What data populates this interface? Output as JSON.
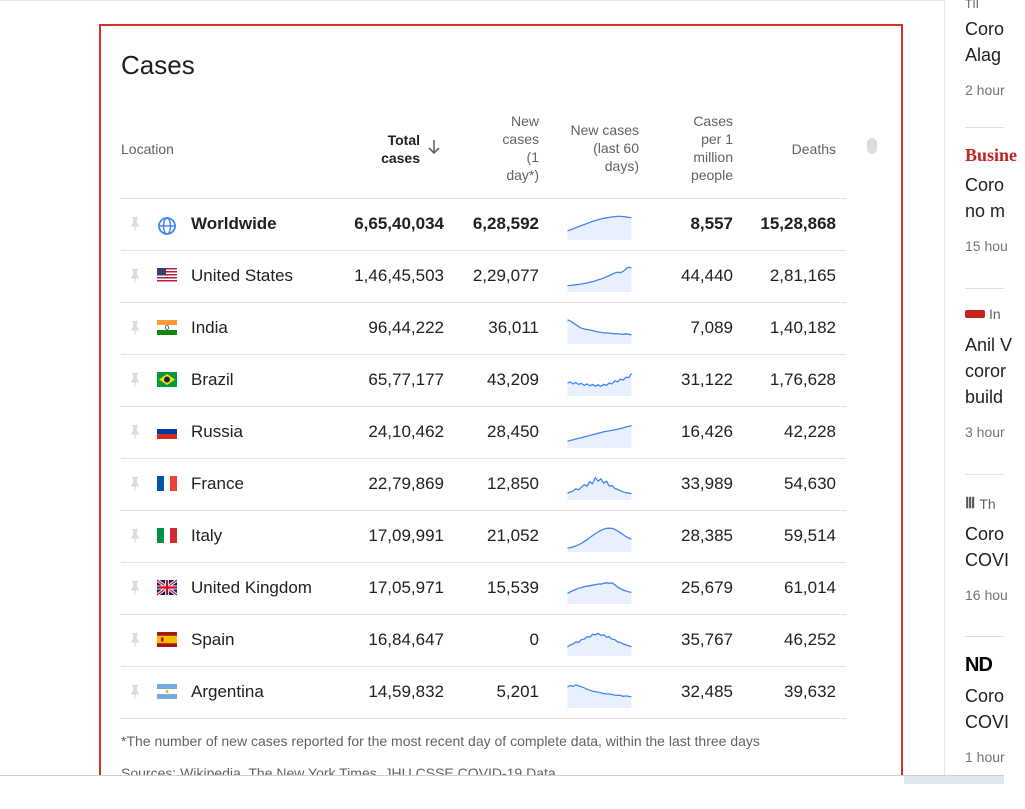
{
  "panel": {
    "title": "Cases",
    "headers": {
      "location": "Location",
      "total_line1": "Total",
      "total_line2": "cases",
      "new_line1": "New",
      "new_line2": "cases",
      "new_line3": "(1",
      "new_line4": "day*)",
      "trend_line1": "New cases",
      "trend_line2": "(last 60",
      "trend_line3": "days)",
      "permil_line1": "Cases",
      "permil_line2": "per 1",
      "permil_line3": "million",
      "permil_line4": "people",
      "deaths": "Deaths"
    },
    "rows": [
      {
        "location": "Worldwide",
        "flag": "globe-icon",
        "total": "6,65,40,034",
        "new": "6,28,592",
        "per_million": "8,557",
        "deaths": "15,28,868",
        "trend": [
          0.3,
          0.34,
          0.38,
          0.43,
          0.47,
          0.52,
          0.56,
          0.61,
          0.65,
          0.69,
          0.73,
          0.76,
          0.79,
          0.82,
          0.84,
          0.86,
          0.88,
          0.89,
          0.9,
          0.9,
          0.89,
          0.88,
          0.86,
          0.85
        ]
      },
      {
        "location": "United States",
        "flag": "us-flag-icon",
        "total": "1,46,45,503",
        "new": "2,29,077",
        "per_million": "44,440",
        "deaths": "2,81,165",
        "trend": [
          0.18,
          0.19,
          0.2,
          0.22,
          0.23,
          0.25,
          0.27,
          0.29,
          0.32,
          0.35,
          0.38,
          0.42,
          0.46,
          0.5,
          0.55,
          0.6,
          0.66,
          0.71,
          0.74,
          0.72,
          0.78,
          0.88,
          0.95,
          0.92
        ]
      },
      {
        "location": "India",
        "flag": "india-flag-icon",
        "total": "96,44,222",
        "new": "36,011",
        "per_million": "7,089",
        "deaths": "1,40,182",
        "trend": [
          0.92,
          0.88,
          0.8,
          0.72,
          0.64,
          0.58,
          0.54,
          0.52,
          0.5,
          0.48,
          0.44,
          0.42,
          0.4,
          0.38,
          0.38,
          0.37,
          0.36,
          0.34,
          0.35,
          0.33,
          0.32,
          0.34,
          0.32,
          0.3
        ]
      },
      {
        "location": "Brazil",
        "flag": "brazil-flag-icon",
        "total": "65,77,177",
        "new": "43,209",
        "per_million": "31,122",
        "deaths": "1,76,628",
        "trend": [
          0.45,
          0.5,
          0.42,
          0.48,
          0.4,
          0.44,
          0.36,
          0.42,
          0.34,
          0.4,
          0.33,
          0.38,
          0.32,
          0.4,
          0.36,
          0.46,
          0.42,
          0.55,
          0.5,
          0.62,
          0.58,
          0.7,
          0.68,
          0.85
        ]
      },
      {
        "location": "Russia",
        "flag": "russia-flag-icon",
        "total": "24,10,462",
        "new": "28,450",
        "per_million": "16,426",
        "deaths": "42,228",
        "trend": [
          0.2,
          0.23,
          0.26,
          0.29,
          0.32,
          0.35,
          0.38,
          0.41,
          0.44,
          0.47,
          0.5,
          0.53,
          0.56,
          0.59,
          0.61,
          0.63,
          0.65,
          0.68,
          0.7,
          0.73,
          0.76,
          0.79,
          0.82,
          0.85
        ]
      },
      {
        "location": "France",
        "flag": "france-flag-icon",
        "total": "22,79,869",
        "new": "12,850",
        "per_million": "33,989",
        "deaths": "54,630",
        "trend": [
          0.2,
          0.25,
          0.3,
          0.38,
          0.34,
          0.45,
          0.55,
          0.5,
          0.68,
          0.6,
          0.85,
          0.7,
          0.8,
          0.62,
          0.7,
          0.5,
          0.52,
          0.4,
          0.36,
          0.3,
          0.26,
          0.22,
          0.2,
          0.18
        ]
      },
      {
        "location": "Italy",
        "flag": "italy-flag-icon",
        "total": "17,09,991",
        "new": "21,052",
        "per_million": "28,385",
        "deaths": "59,514",
        "trend": [
          0.08,
          0.1,
          0.13,
          0.17,
          0.22,
          0.28,
          0.35,
          0.43,
          0.52,
          0.6,
          0.68,
          0.75,
          0.82,
          0.87,
          0.9,
          0.91,
          0.9,
          0.86,
          0.8,
          0.72,
          0.64,
          0.56,
          0.5,
          0.45
        ]
      },
      {
        "location": "United Kingdom",
        "flag": "uk-flag-icon",
        "total": "17,05,971",
        "new": "15,539",
        "per_million": "25,679",
        "deaths": "61,014",
        "trend": [
          0.35,
          0.42,
          0.48,
          0.52,
          0.58,
          0.6,
          0.64,
          0.66,
          0.68,
          0.7,
          0.72,
          0.75,
          0.74,
          0.78,
          0.8,
          0.78,
          0.8,
          0.72,
          0.62,
          0.56,
          0.5,
          0.46,
          0.42,
          0.4
        ]
      },
      {
        "location": "Spain",
        "flag": "spain-flag-icon",
        "total": "16,84,647",
        "new": "0",
        "per_million": "35,767",
        "deaths": "46,252",
        "trend": [
          0.3,
          0.38,
          0.42,
          0.5,
          0.48,
          0.6,
          0.62,
          0.72,
          0.7,
          0.82,
          0.8,
          0.86,
          0.78,
          0.8,
          0.7,
          0.72,
          0.62,
          0.6,
          0.5,
          0.48,
          0.42,
          0.38,
          0.34,
          0.3
        ]
      },
      {
        "location": "Argentina",
        "flag": "argentina-flag-icon",
        "total": "14,59,832",
        "new": "5,201",
        "per_million": "32,485",
        "deaths": "39,632",
        "trend": [
          0.8,
          0.85,
          0.82,
          0.88,
          0.84,
          0.8,
          0.76,
          0.7,
          0.66,
          0.62,
          0.6,
          0.58,
          0.55,
          0.52,
          0.5,
          0.5,
          0.48,
          0.46,
          0.44,
          0.44,
          0.4,
          0.42,
          0.4,
          0.38
        ]
      }
    ],
    "footnote": "*The number of new cases reported for the most recent day of complete data, within the last three days",
    "sources": "Sources: Wikipedia, The New York Times, JHU CSSE COVID-19 Data"
  },
  "news": [
    {
      "source": "TII",
      "title1": "Coro",
      "title2": "Alag",
      "time": "2 hour"
    },
    {
      "source": "Busine",
      "title1": "Coro",
      "title2": "no m",
      "time": "15 hou"
    },
    {
      "source": "In",
      "title1": "Anil V",
      "title2": "coror",
      "title3": "build",
      "time": "3 hour"
    },
    {
      "source": "Th",
      "title1": "Coro",
      "title2": "COVI",
      "time": "16 hou"
    },
    {
      "source": "ND",
      "title1": "Coro",
      "title2": "COVI",
      "time": "1 hour"
    }
  ],
  "colors": {
    "accent_border": "#d93025",
    "spark_line": "#4285f4",
    "spark_fill": "#e8f0fe"
  }
}
